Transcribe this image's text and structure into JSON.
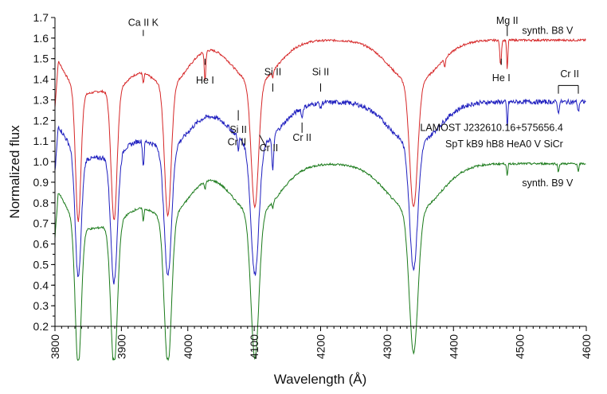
{
  "chart_data": {
    "type": "line",
    "xlabel": "Wavelength (Å)",
    "ylabel": "Normalized flux",
    "xlim": [
      3800,
      4600
    ],
    "ylim": [
      0.2,
      1.7
    ],
    "x_ticks": [
      3800,
      3900,
      4000,
      4100,
      4200,
      4300,
      4400,
      4500,
      4600
    ],
    "y_ticks": [
      0.2,
      0.3,
      0.4,
      0.5,
      0.6,
      0.7,
      0.8,
      0.9,
      1.0,
      1.1,
      1.2,
      1.3,
      1.4,
      1.5,
      1.6,
      1.7
    ],
    "grid": false,
    "colors": {
      "red": "#d62728",
      "blue": "#1f1fbf",
      "green": "#1a7a1a",
      "axis": "#000000"
    },
    "series": [
      {
        "name": "synth. B8 V",
        "color": "#d62728",
        "continuum": 1.59,
        "lines": [
          {
            "x": 3835,
            "depth": 0.63,
            "width": 4
          },
          {
            "x": 3889,
            "depth": 0.63,
            "width": 4.5
          },
          {
            "x": 3933,
            "depth": 0.05,
            "width": 1
          },
          {
            "x": 3970,
            "depth": 0.63,
            "width": 5
          },
          {
            "x": 4026,
            "depth": 0.14,
            "width": 1.2
          },
          {
            "x": 4101,
            "depth": 0.6,
            "width": 5.5
          },
          {
            "x": 4128,
            "depth": 0.03,
            "width": 1
          },
          {
            "x": 4340,
            "depth": 0.6,
            "width": 6
          },
          {
            "x": 4387,
            "depth": 0.04,
            "width": 1
          },
          {
            "x": 4471,
            "depth": 0.12,
            "width": 1.2
          },
          {
            "x": 4481,
            "depth": 0.14,
            "width": 0.9
          }
        ]
      },
      {
        "name": "LAMOST J232610.16+575656.4",
        "color": "#1f1fbf",
        "continuum": 1.29,
        "lines": [
          {
            "x": 3835,
            "depth": 0.6,
            "width": 4.5
          },
          {
            "x": 3889,
            "depth": 0.62,
            "width": 5
          },
          {
            "x": 3933,
            "depth": 0.12,
            "width": 1.2
          },
          {
            "x": 3970,
            "depth": 0.62,
            "width": 5.5
          },
          {
            "x": 4076,
            "depth": 0.06,
            "width": 1
          },
          {
            "x": 4101,
            "depth": 0.62,
            "width": 6
          },
          {
            "x": 4128,
            "depth": 0.16,
            "width": 1.5
          },
          {
            "x": 4172,
            "depth": 0.05,
            "width": 1
          },
          {
            "x": 4200,
            "depth": 0.03,
            "width": 1
          },
          {
            "x": 4340,
            "depth": 0.6,
            "width": 6
          },
          {
            "x": 4481,
            "depth": 0.12,
            "width": 0.9
          },
          {
            "x": 4558,
            "depth": 0.06,
            "width": 1
          },
          {
            "x": 4588,
            "depth": 0.05,
            "width": 1
          }
        ]
      },
      {
        "name": "synth. B9 V",
        "color": "#1a7a1a",
        "continuum": 0.99,
        "lines": [
          {
            "x": 3835,
            "depth": 0.7,
            "width": 4.5
          },
          {
            "x": 3889,
            "depth": 0.7,
            "width": 5
          },
          {
            "x": 3933,
            "depth": 0.06,
            "width": 1
          },
          {
            "x": 3970,
            "depth": 0.72,
            "width": 5.5
          },
          {
            "x": 4026,
            "depth": 0.04,
            "width": 1
          },
          {
            "x": 4101,
            "depth": 0.7,
            "width": 6
          },
          {
            "x": 4128,
            "depth": 0.03,
            "width": 1
          },
          {
            "x": 4340,
            "depth": 0.68,
            "width": 6.5
          },
          {
            "x": 4481,
            "depth": 0.06,
            "width": 0.9
          },
          {
            "x": 4558,
            "depth": 0.04,
            "width": 1
          },
          {
            "x": 4588,
            "depth": 0.04,
            "width": 1
          }
        ]
      }
    ],
    "annotations": [
      {
        "text": "Ca II K",
        "x": 3933,
        "y": 1.66
      },
      {
        "text": "He I",
        "x": 4026,
        "y": 1.38
      },
      {
        "text": "Si II",
        "x": 4128,
        "y": 1.42
      },
      {
        "text": "Si II",
        "x": 4200,
        "y": 1.42
      },
      {
        "text": "Mg II",
        "x": 4481,
        "y": 1.67
      },
      {
        "text": "He I",
        "x": 4472,
        "y": 1.39
      },
      {
        "text": "Cr II",
        "x": 4575,
        "y": 1.41
      },
      {
        "text": "Si II",
        "x": 4076,
        "y": 1.14
      },
      {
        "text": "Cr II",
        "x": 4074,
        "y": 1.08
      },
      {
        "text": "Cr II",
        "x": 4122,
        "y": 1.05
      },
      {
        "text": "Cr II",
        "x": 4172,
        "y": 1.1
      },
      {
        "text": "LAMOST J232610.16+575656.4",
        "x": 4565,
        "y": 1.15
      },
      {
        "text": "SpT kB9 hB8 HeA0 V SiCr",
        "x": 4565,
        "y": 1.07
      },
      {
        "text": "synth. B8 V",
        "x": 4580,
        "y": 1.62
      },
      {
        "text": "synth. B9 V",
        "x": 4580,
        "y": 0.88
      }
    ]
  }
}
